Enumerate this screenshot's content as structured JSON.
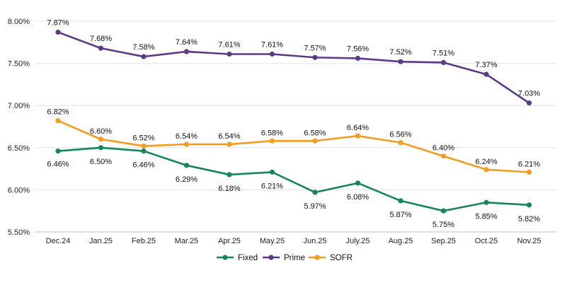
{
  "chart_data": {
    "type": "line",
    "title": "",
    "xlabel": "",
    "ylabel": "",
    "categories": [
      "Dec.24",
      "Jan.25",
      "Feb.25",
      "Mar.25",
      "Apr.25",
      "May.25",
      "Jun.25",
      "July.25",
      "Aug.25",
      "Sep.25",
      "Oct.25",
      "Nov.25"
    ],
    "ylim": [
      5.5,
      8.0
    ],
    "yticks": [
      5.5,
      6.0,
      6.5,
      7.0,
      7.5,
      8.0
    ],
    "ytick_labels": [
      "5.50%",
      "6.00%",
      "6.50%",
      "7.00%",
      "7.50%",
      "8.00%"
    ],
    "grid": true,
    "legend_position": "bottom-center",
    "series": [
      {
        "name": "Fixed",
        "color": "#14875a",
        "values": [
          6.46,
          6.5,
          6.46,
          6.29,
          6.18,
          6.21,
          5.97,
          6.08,
          5.87,
          5.75,
          5.85,
          5.82
        ],
        "labels": [
          "6.46%",
          "6.50%",
          "6.46%",
          "6.29%",
          "6.18%",
          "6.21%",
          "5.97%",
          "6.08%",
          "5.87%",
          "5.75%",
          "5.85%",
          "5.82%"
        ]
      },
      {
        "name": "Prime",
        "color": "#5c3a87",
        "values": [
          7.87,
          7.68,
          7.58,
          7.64,
          7.61,
          7.61,
          7.57,
          7.56,
          7.52,
          7.51,
          7.37,
          7.03
        ],
        "labels": [
          "7.87%",
          "7.68%",
          "7.58%",
          "7.64%",
          "7.61%",
          "7.61%",
          "7.57%",
          "7.56%",
          "7.52%",
          "7.51%",
          "7.37%",
          "7.03%"
        ]
      },
      {
        "name": "SOFR",
        "color": "#f39c1e",
        "values": [
          6.82,
          6.6,
          6.52,
          6.54,
          6.54,
          6.58,
          6.58,
          6.64,
          6.56,
          6.4,
          6.24,
          6.21
        ],
        "labels": [
          "6.82%",
          "6.60%",
          "6.52%",
          "6.54%",
          "6.54%",
          "6.58%",
          "6.58%",
          "6.64%",
          "6.56%",
          "6.40%",
          "6.24%",
          "6.21%"
        ]
      }
    ]
  }
}
